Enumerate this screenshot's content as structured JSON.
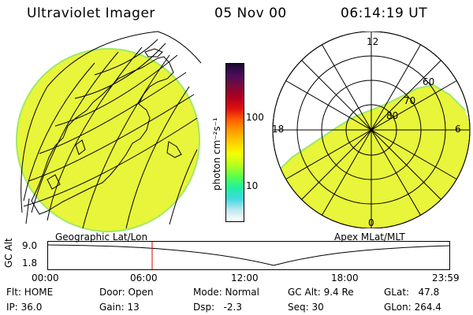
{
  "header": {
    "instrument": "Ultraviolet Imager",
    "date": "05 Nov 00",
    "time": "06:14:19 UT"
  },
  "colorbar": {
    "unit_label": "photon cm⁻²s⁻¹",
    "tick_100": "100",
    "tick_10": "10",
    "colors": [
      "#1a0b2e",
      "#4a0d5c",
      "#7a0a3a",
      "#b00020",
      "#e01010",
      "#ff6000",
      "#ff9f00",
      "#ffd000",
      "#f4ff00",
      "#b8ff20",
      "#5cff4a",
      "#20f0a0",
      "#40d8e0",
      "#bfe8f0",
      "#ffffff"
    ]
  },
  "left_panel": {
    "label": "Geographic Lat/Lon",
    "fill_color": "#e8f53a"
  },
  "right_panel": {
    "label": "Apex MLat/MLT",
    "mlt_12": "12",
    "mlt_18": "18",
    "mlt_6": "6",
    "mlt_0": "0",
    "lat_60": "60",
    "lat_70": "70",
    "lat_80": "80"
  },
  "altitude_plot": {
    "axis_title": "GC Alt",
    "ytick_high": "9.0",
    "ytick_low": "1.8",
    "xticks": [
      "00:00",
      "06:00",
      "12:00",
      "18:00",
      "23:59"
    ],
    "marker_color": "#e00000"
  },
  "status": {
    "flt": "Flt: HOME",
    "ip": "IP: 36.0",
    "door": "Door: Open",
    "gain": "Gain: 13",
    "mode": "Mode: Normal",
    "dsp": "Dsp:   -2.3",
    "gc_alt": "GC Alt: 9.4 Re",
    "seq": "Seq: 30",
    "glat": "GLat:   47.8",
    "glon": "GLon: 264.4"
  }
}
